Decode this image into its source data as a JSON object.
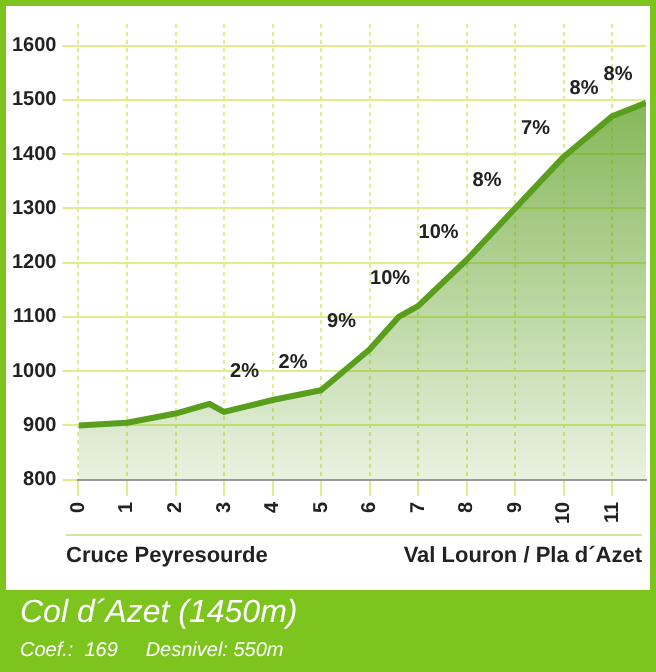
{
  "chart_data": {
    "type": "area",
    "title": "Col d´Azet (1450m)",
    "subtitle": "Coef.:  169     Desnivel: 550m",
    "x": [
      0,
      1,
      2,
      2.7,
      3,
      4,
      5,
      6,
      6.6,
      7,
      8,
      9,
      10,
      11,
      11.7
    ],
    "series": [
      {
        "color": "#5a9e1e",
        "values": [
          900,
          905,
          922,
          940,
          925,
          947,
          965,
          1040,
          1100,
          1120,
          1205,
          1300,
          1395,
          1470,
          1495
        ]
      }
    ],
    "xlim": [
      0,
      11.7
    ],
    "xticks": [
      0,
      1,
      2,
      3,
      4,
      5,
      6,
      7,
      8,
      9,
      10,
      11
    ],
    "ylim": [
      800,
      1640
    ],
    "yticks": [
      800,
      900,
      1000,
      1100,
      1200,
      1300,
      1400,
      1500,
      1600
    ],
    "grid": true,
    "marker": "none",
    "line_style": "solid",
    "legend": false,
    "annotations": [
      "Cruce Peyresourde",
      "Val Louron / Pla d´Azet",
      {
        "text": "2%",
        "x": 4,
        "y": 947
      },
      {
        "text": "2%",
        "x": 5,
        "y": 965
      },
      {
        "text": "9%",
        "x": 6,
        "y": 1040
      },
      {
        "text": "10%",
        "x": 7,
        "y": 1120
      },
      {
        "text": "10%",
        "x": 8,
        "y": 1205
      },
      {
        "text": "8%",
        "x": 9,
        "y": 1300
      },
      {
        "text": "7%",
        "x": 10,
        "y": 1395
      },
      {
        "text": "8%",
        "x": 11,
        "y": 1470
      },
      {
        "text": "8%",
        "x": 11.7,
        "y": 1495
      }
    ]
  }
}
